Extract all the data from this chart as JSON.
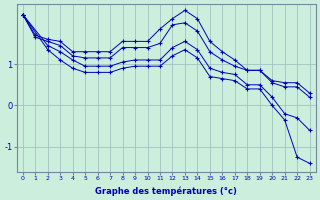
{
  "xlabel": "Graphe des températures (°c)",
  "xlim": [
    -0.5,
    23.5
  ],
  "ylim": [
    -1.6,
    2.45
  ],
  "yticks": [
    -1,
    0,
    1
  ],
  "xticks": [
    0,
    1,
    2,
    3,
    4,
    5,
    6,
    7,
    8,
    9,
    10,
    11,
    12,
    13,
    14,
    15,
    16,
    17,
    18,
    19,
    20,
    21,
    22,
    23
  ],
  "background_color": "#cceedd",
  "line_color": "#0000bb",
  "grid_color": "#99bbbb",
  "lines": [
    {
      "x": [
        0,
        1,
        2,
        3,
        4,
        5,
        6,
        7,
        8,
        9,
        10,
        11,
        12,
        13,
        14,
        15,
        16,
        17,
        18,
        19,
        20,
        21,
        22,
        23
      ],
      "y": [
        2.2,
        1.7,
        1.6,
        1.55,
        1.3,
        1.3,
        1.3,
        1.3,
        1.55,
        1.55,
        1.55,
        1.85,
        2.1,
        2.3,
        2.1,
        1.55,
        1.3,
        1.1,
        0.85,
        0.85,
        0.6,
        0.55,
        0.55,
        0.3
      ]
    },
    {
      "x": [
        0,
        1,
        2,
        3,
        4,
        5,
        6,
        7,
        8,
        9,
        10,
        11,
        12,
        13,
        14,
        15,
        16,
        17,
        18,
        19,
        20,
        21,
        22,
        23
      ],
      "y": [
        2.2,
        1.65,
        1.55,
        1.45,
        1.2,
        1.15,
        1.15,
        1.15,
        1.4,
        1.4,
        1.4,
        1.5,
        1.95,
        2.0,
        1.8,
        1.3,
        1.1,
        0.95,
        0.85,
        0.85,
        0.55,
        0.45,
        0.45,
        0.2
      ]
    },
    {
      "x": [
        0,
        2,
        3,
        4,
        5,
        6,
        7,
        8,
        9,
        10,
        11,
        12,
        13,
        14,
        15,
        16,
        17,
        18,
        19,
        20,
        21,
        22,
        23
      ],
      "y": [
        2.2,
        1.45,
        1.3,
        1.1,
        0.95,
        0.95,
        0.95,
        1.05,
        1.1,
        1.1,
        1.1,
        1.4,
        1.55,
        1.35,
        0.9,
        0.8,
        0.75,
        0.5,
        0.5,
        0.2,
        -0.2,
        -0.3,
        -0.6
      ]
    },
    {
      "x": [
        0,
        2,
        3,
        4,
        5,
        6,
        7,
        8,
        9,
        10,
        11,
        12,
        13,
        14,
        15,
        16,
        17,
        18,
        19,
        20,
        21,
        22,
        23
      ],
      "y": [
        2.2,
        1.35,
        1.1,
        0.9,
        0.8,
        0.8,
        0.8,
        0.9,
        0.95,
        0.95,
        0.95,
        1.2,
        1.35,
        1.15,
        0.7,
        0.65,
        0.6,
        0.4,
        0.4,
        0.0,
        -0.35,
        -1.25,
        -1.4
      ]
    }
  ]
}
